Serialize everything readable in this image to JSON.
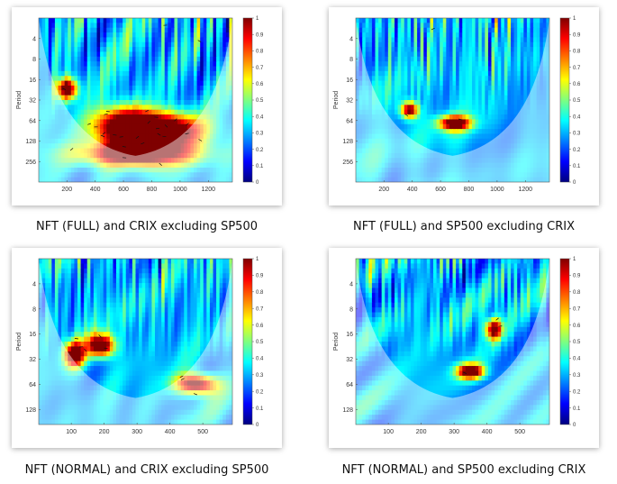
{
  "colormap": [
    "#00007f",
    "#0000ff",
    "#007fff",
    "#00ffff",
    "#7fff7f",
    "#ffff00",
    "#ff7f00",
    "#ff0000",
    "#7f0000"
  ],
  "chart_data": [
    {
      "type": "heatmap",
      "caption": "NFT (FULL) and CRIX excluding SP500",
      "ylabel": "Period",
      "xlabel": "",
      "x_ticks": [
        200,
        400,
        600,
        800,
        1000,
        1200
      ],
      "xlim": [
        1,
        1370
      ],
      "y_ticks": [
        "4",
        "8",
        "16",
        "32",
        "64",
        "128",
        "256"
      ],
      "ylim_log2": [
        1,
        9
      ],
      "colorbar_ticks": [
        "0",
        "0.1",
        "0.2",
        "0.3",
        "0.4",
        "0.5",
        "0.6",
        "0.7",
        "0.8",
        "0.9",
        "1"
      ],
      "seed": 11,
      "hotspots": [
        {
          "x": 620,
          "period": 80,
          "w": 220,
          "h": 0.9,
          "v": 0.95
        },
        {
          "x": 900,
          "period": 90,
          "w": 260,
          "h": 0.8,
          "v": 0.9
        },
        {
          "x": 700,
          "period": 200,
          "w": 400,
          "h": 0.6,
          "v": 0.85
        },
        {
          "x": 200,
          "period": 22,
          "w": 70,
          "h": 0.5,
          "v": 0.85
        }
      ]
    },
    {
      "type": "heatmap",
      "caption": "NFT (FULL) and SP500 excluding CRIX",
      "ylabel": "Period",
      "xlabel": "",
      "x_ticks": [
        200,
        400,
        600,
        800,
        1000,
        1200
      ],
      "xlim": [
        1,
        1370
      ],
      "y_ticks": [
        "4",
        "8",
        "16",
        "32",
        "64",
        "128",
        "256"
      ],
      "ylim_log2": [
        1,
        9
      ],
      "colorbar_ticks": [
        "0",
        "0.1",
        "0.2",
        "0.3",
        "0.4",
        "0.5",
        "0.6",
        "0.7",
        "0.8",
        "0.9",
        "1"
      ],
      "seed": 23,
      "hotspots": [
        {
          "x": 700,
          "period": 70,
          "w": 110,
          "h": 0.35,
          "v": 0.85
        },
        {
          "x": 380,
          "period": 45,
          "w": 60,
          "h": 0.4,
          "v": 0.8
        }
      ]
    },
    {
      "type": "heatmap",
      "caption": "NFT (NORMAL) and CRIX excluding SP500",
      "ylabel": "Period",
      "xlabel": "",
      "x_ticks": [
        100,
        200,
        300,
        400,
        500
      ],
      "xlim": [
        1,
        590
      ],
      "y_ticks": [
        "4",
        "8",
        "16",
        "32",
        "64",
        "128"
      ],
      "ylim_log2": [
        1,
        7.6
      ],
      "colorbar_ticks": [
        "0",
        "0.1",
        "0.2",
        "0.3",
        "0.4",
        "0.5",
        "0.6",
        "0.7",
        "0.8",
        "0.9",
        "1"
      ],
      "seed": 37,
      "hotspots": [
        {
          "x": 190,
          "period": 22,
          "w": 40,
          "h": 0.45,
          "v": 0.9
        },
        {
          "x": 110,
          "period": 28,
          "w": 30,
          "h": 0.5,
          "v": 0.85
        },
        {
          "x": 480,
          "period": 64,
          "w": 60,
          "h": 0.4,
          "v": 0.85
        }
      ]
    },
    {
      "type": "heatmap",
      "caption": "NFT (NORMAL) and SP500 excluding CRIX",
      "ylabel": "Period",
      "xlabel": "",
      "x_ticks": [
        100,
        200,
        300,
        400,
        500
      ],
      "xlim": [
        1,
        590
      ],
      "y_ticks": [
        "4",
        "8",
        "16",
        "32",
        "64",
        "128"
      ],
      "ylim_log2": [
        1,
        7.6
      ],
      "colorbar_ticks": [
        "0",
        "0.1",
        "0.2",
        "0.3",
        "0.4",
        "0.5",
        "0.6",
        "0.7",
        "0.8",
        "0.9",
        "1"
      ],
      "seed": 53,
      "hotspots": [
        {
          "x": 350,
          "period": 45,
          "w": 40,
          "h": 0.3,
          "v": 0.9
        },
        {
          "x": 420,
          "period": 14,
          "w": 25,
          "h": 0.4,
          "v": 0.8
        }
      ]
    }
  ]
}
